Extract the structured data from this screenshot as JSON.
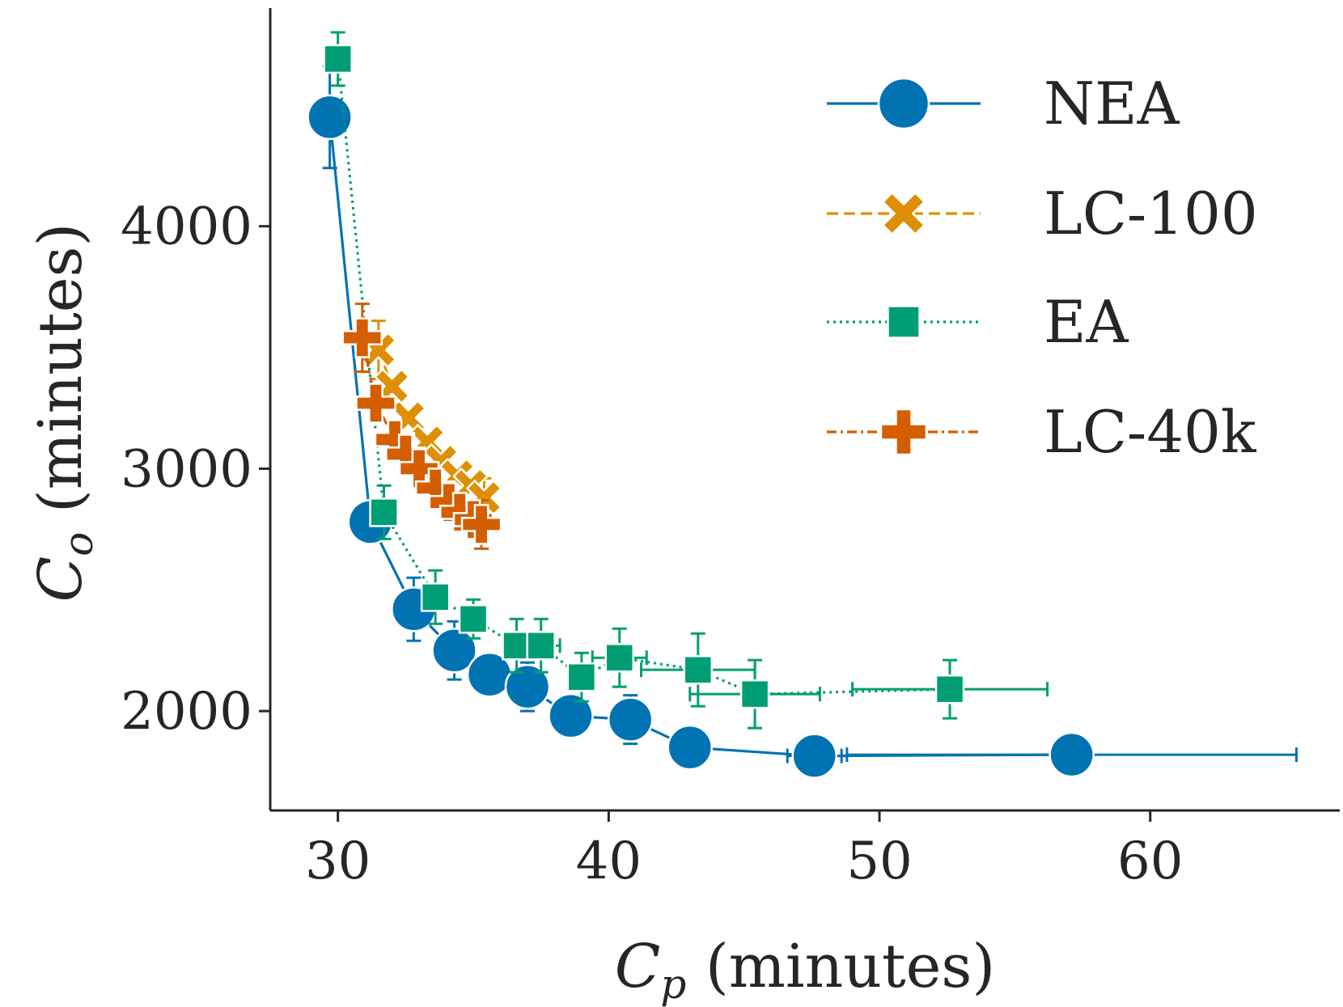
{
  "chart_data": {
    "type": "line",
    "title": "",
    "xlabel": "C_p (minutes)",
    "ylabel": "C_o (minutes)",
    "xlabel_parts": {
      "symbol": "C",
      "subscript": "p",
      "unit": "(minutes)"
    },
    "ylabel_parts": {
      "symbol": "C",
      "subscript": "o",
      "unit": "(minutes)"
    },
    "xlim": [
      27.5,
      67
    ],
    "ylim": [
      1590,
      4900
    ],
    "xticks": [
      30,
      40,
      50,
      60
    ],
    "yticks": [
      2000,
      3000,
      4000
    ],
    "grid": false,
    "legend_position": "top-right",
    "series": [
      {
        "name": "NEA",
        "color": "#0173b2",
        "marker": "circle",
        "linestyle": "solid",
        "points": [
          {
            "x": 29.7,
            "y": 4450,
            "yerr": 210
          },
          {
            "x": 31.2,
            "y": 2780
          },
          {
            "x": 32.8,
            "y": 2420,
            "yerr": 130
          },
          {
            "x": 34.3,
            "y": 2250,
            "yerr": 120
          },
          {
            "x": 35.6,
            "y": 2150
          },
          {
            "x": 37.0,
            "y": 2100,
            "yerr": 100
          },
          {
            "x": 38.6,
            "y": 1980
          },
          {
            "x": 40.8,
            "y": 1965,
            "yerr": 100
          },
          {
            "x": 43.0,
            "y": 1850
          },
          {
            "x": 47.6,
            "y": 1815,
            "xerr": 1.0
          },
          {
            "x": 57.1,
            "y": 1820,
            "xerr": 8.3
          }
        ]
      },
      {
        "name": "LC-100",
        "color": "#de8f05",
        "marker": "x",
        "linestyle": "dashed",
        "points": [
          {
            "x": 31.5,
            "y": 3490,
            "yerr": 120
          },
          {
            "x": 32.0,
            "y": 3340
          },
          {
            "x": 32.6,
            "y": 3210
          },
          {
            "x": 33.3,
            "y": 3110
          },
          {
            "x": 33.8,
            "y": 3030
          },
          {
            "x": 34.4,
            "y": 2970
          },
          {
            "x": 34.9,
            "y": 2930
          },
          {
            "x": 35.4,
            "y": 2880,
            "yerr": 80
          }
        ]
      },
      {
        "name": "EA",
        "color": "#029e73",
        "marker": "square",
        "linestyle": "dotted",
        "points": [
          {
            "x": 30.0,
            "y": 4690,
            "yerr": 110
          },
          {
            "x": 31.7,
            "y": 2820,
            "yerr": 110
          },
          {
            "x": 33.6,
            "y": 2470,
            "yerr": 110
          },
          {
            "x": 35.0,
            "y": 2380,
            "yerr": 80
          },
          {
            "x": 36.6,
            "y": 2270,
            "yerr": 110,
            "xerr": 0.5
          },
          {
            "x": 37.5,
            "y": 2270,
            "yerr": 110,
            "xerr": 0.7
          },
          {
            "x": 39.0,
            "y": 2140,
            "yerr": 100
          },
          {
            "x": 40.4,
            "y": 2220,
            "yerr": 120,
            "xerr": 1.0
          },
          {
            "x": 43.3,
            "y": 2170,
            "yerr": 150,
            "xerr": 2.1
          },
          {
            "x": 45.4,
            "y": 2070,
            "yerr": 140,
            "xerr": 2.4
          },
          {
            "x": 52.6,
            "y": 2090,
            "yerr": 120,
            "xerr": 3.6
          }
        ]
      },
      {
        "name": "LC-40k",
        "color": "#d55e00",
        "marker": "plus",
        "linestyle": "dashdot",
        "points": [
          {
            "x": 30.9,
            "y": 3540,
            "yerr": 140
          },
          {
            "x": 31.4,
            "y": 3270
          },
          {
            "x": 32.1,
            "y": 3120
          },
          {
            "x": 32.5,
            "y": 3060
          },
          {
            "x": 33.0,
            "y": 3000
          },
          {
            "x": 33.6,
            "y": 2920
          },
          {
            "x": 34.1,
            "y": 2860
          },
          {
            "x": 34.5,
            "y": 2820
          },
          {
            "x": 35.0,
            "y": 2790
          },
          {
            "x": 35.3,
            "y": 2770,
            "yerr": 100
          }
        ]
      }
    ]
  }
}
